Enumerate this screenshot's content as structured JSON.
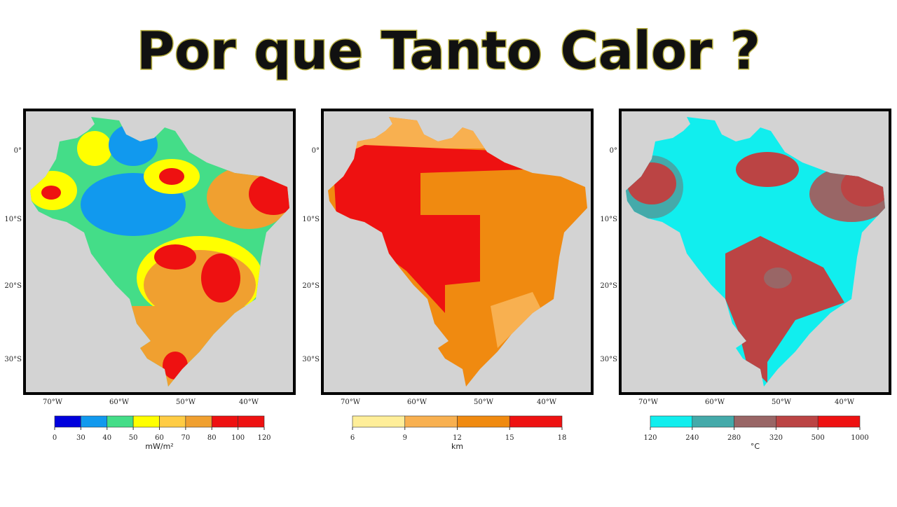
{
  "title": "Por que Tanto Calor ?",
  "maps": [
    {
      "lat_labels": [
        "0°",
        "10°S",
        "20°S",
        "30°S"
      ],
      "lon_labels": [
        "70°W",
        "60°W",
        "50°W",
        "40°W"
      ],
      "colorbar": {
        "ticks": [
          0,
          30,
          40,
          50,
          60,
          70,
          80,
          100,
          120
        ],
        "colors": [
          "#0000dd",
          "#1199ee",
          "#44dd88",
          "#ffff00",
          "#ffcc44",
          "#f0a030",
          "#ee1111",
          "#ee1111"
        ],
        "unit": "mW/m²"
      }
    },
    {
      "lat_labels": [
        "0°",
        "10°S",
        "20°S",
        "30°S"
      ],
      "lon_labels": [
        "70°W",
        "60°W",
        "50°W",
        "40°W"
      ],
      "colorbar": {
        "ticks": [
          6,
          9,
          12,
          15,
          18
        ],
        "colors": [
          "#ffee99",
          "#f8b050",
          "#f08a10",
          "#ee1111"
        ],
        "unit": "km"
      }
    },
    {
      "lat_labels": [
        "0°",
        "10°S",
        "20°S",
        "30°S"
      ],
      "lon_labels": [
        "70°W",
        "60°W",
        "50°W",
        "40°W"
      ],
      "colorbar": {
        "ticks": [
          120,
          240,
          280,
          320,
          500,
          1000
        ],
        "colors": [
          "#11eeee",
          "#44aaaa",
          "#996666",
          "#bb4444",
          "#ee1111"
        ],
        "unit": "°C"
      }
    }
  ]
}
